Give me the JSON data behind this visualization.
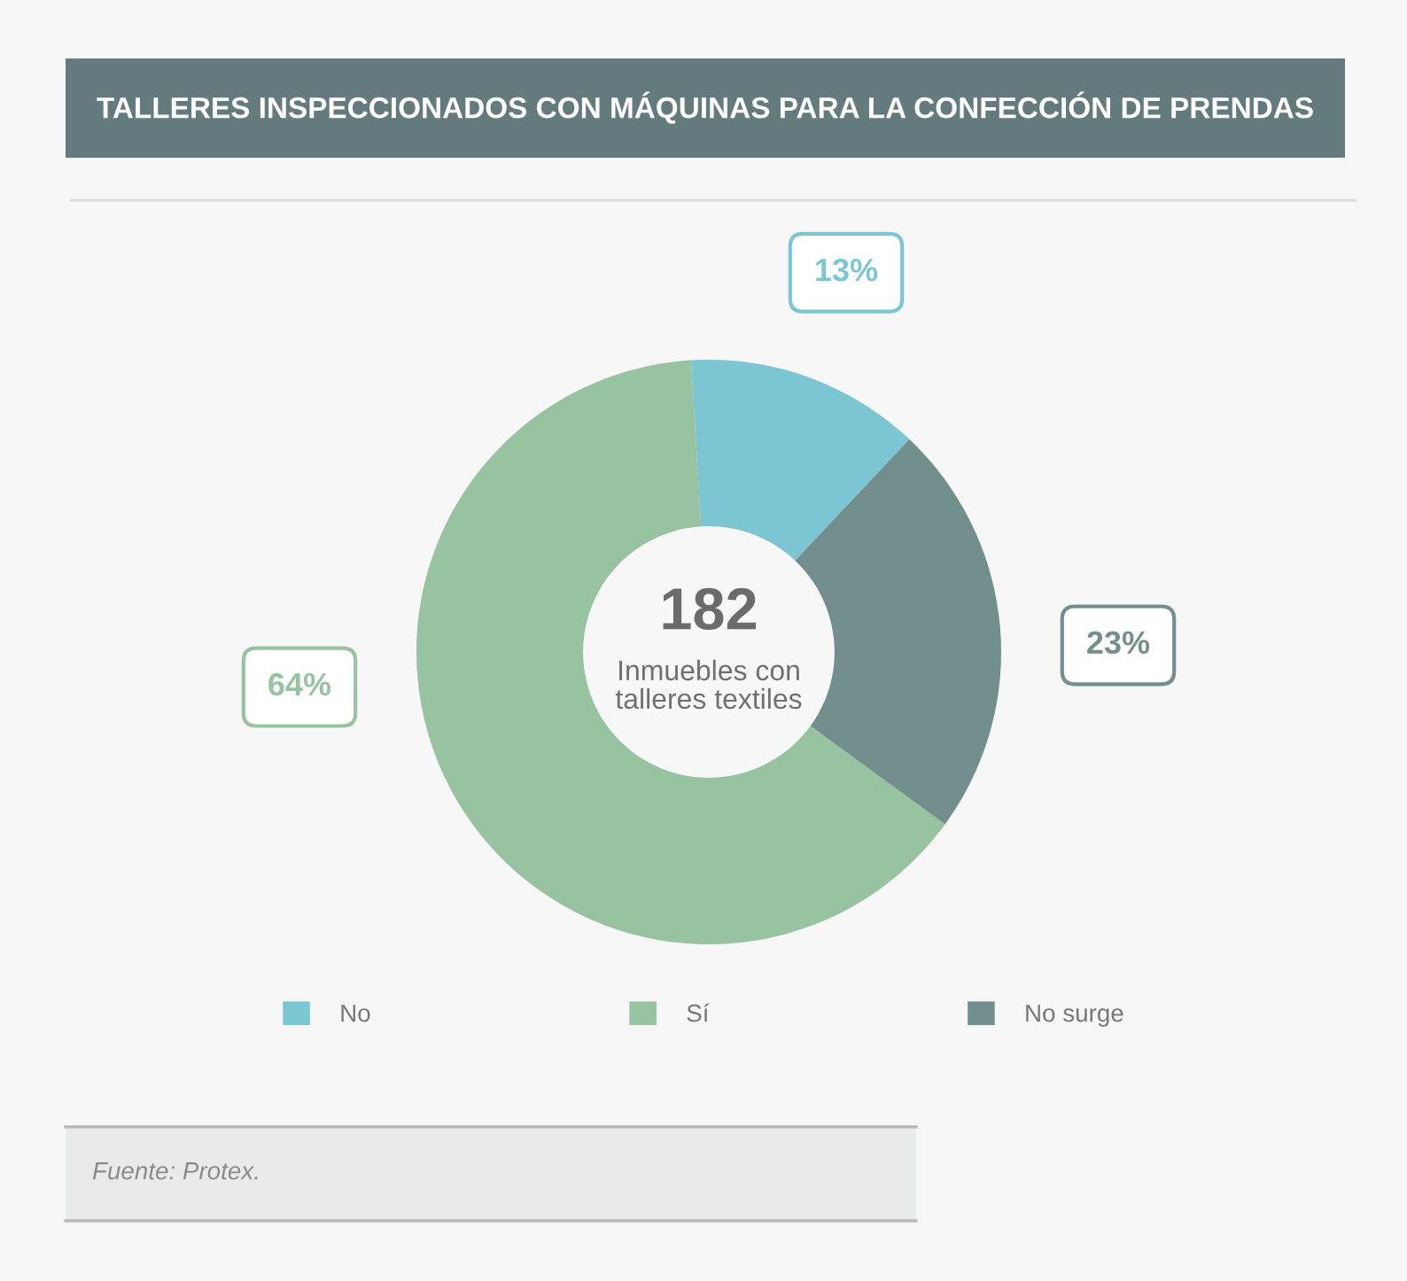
{
  "chart_data": {
    "type": "donut",
    "title": "TALLERES INSPECCIONADOS CON MÁQUINAS PARA LA CONFECCIÓN DE PRENDAS",
    "categories": [
      "No",
      "Sí",
      "No surge"
    ],
    "values": [
      13,
      64,
      23
    ],
    "colors": [
      "#7cc6d4",
      "#98c3a0",
      "#728f8e"
    ],
    "value_labels": [
      "13%",
      "64%",
      "23%"
    ],
    "annotations": [
      "182",
      "Inmuebles con\ntalleres textiles",
      "Fuente: Protex."
    ],
    "legend": "bottom"
  }
}
